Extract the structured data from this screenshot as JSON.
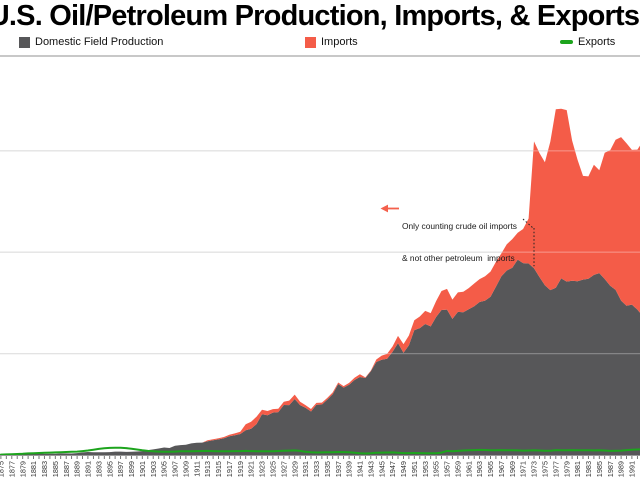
{
  "title": "U.S. Oil/Petroleum Production, Imports, & Exports",
  "legend": {
    "items": [
      {
        "label": "Domestic Field Production",
        "color": "#575759",
        "swatch": "square"
      },
      {
        "label": "Imports",
        "color": "#f45c48",
        "swatch": "square"
      },
      {
        "label": "Exports",
        "color": "#1da41d",
        "swatch": "dash"
      }
    ]
  },
  "annotation": {
    "line1": "Only counting crude oil imports",
    "line2": "& not other petroleum  imports",
    "arrow_color": "#f4604c",
    "pointer_year": 1973
  },
  "chart_data": {
    "type": "area",
    "stacked": true,
    "title": "U.S. Oil/Petroleum Production, Imports, & Exports",
    "xlabel": "",
    "ylabel": "",
    "y_axis_note": "y-axis labels cropped out of view; gridlines estimated at 5000/10000/15000 (thousand-barrel-per-day scale)",
    "grid": "horizontal",
    "legend_position": "top",
    "year_start": 1875,
    "year_end": 1993,
    "ylim": [
      0,
      20000
    ],
    "y_gridlines": [
      5000,
      10000,
      15000
    ],
    "x_tick_label_years": [
      1875,
      1877,
      1879,
      1881,
      1883,
      1885,
      1887,
      1889,
      1891,
      1893,
      1895,
      1897,
      1899,
      1901,
      1903,
      1905,
      1907,
      1909,
      1911,
      1913,
      1915,
      1917,
      1919,
      1921,
      1923,
      1925,
      1927,
      1929,
      1931,
      1933,
      1935,
      1937,
      1939,
      1941,
      1943,
      1945,
      1947,
      1949,
      1951,
      1953,
      1955,
      1957,
      1959,
      1961,
      1963,
      1965,
      1967,
      1969,
      1971,
      1973,
      1975,
      1977,
      1979,
      1981,
      1983,
      1985,
      1987,
      1989,
      1991
    ],
    "series": [
      {
        "name": "Domestic Field Production",
        "color": "#575759",
        "render": "area",
        "values": [
          30,
          33,
          36,
          42,
          54,
          72,
          76,
          83,
          64,
          66,
          60,
          77,
          77,
          76,
          96,
          126,
          149,
          138,
          133,
          135,
          145,
          167,
          166,
          152,
          157,
          174,
          190,
          243,
          275,
          321,
          369,
          347,
          455,
          488,
          501,
          574,
          603,
          609,
          678,
          728,
          770,
          822,
          920,
          976,
          1037,
          1221,
          1294,
          1527,
          2007,
          1960,
          2092,
          2117,
          2467,
          2463,
          2760,
          2460,
          2332,
          2145,
          2481,
          2488,
          2730,
          3001,
          3500,
          3324,
          3466,
          3697,
          3847,
          3795,
          4125,
          4584,
          4695,
          4750,
          5088,
          5520,
          5046,
          5407,
          6158,
          6256,
          6458,
          6342,
          6807,
          7151,
          7170,
          6710,
          7054,
          7035,
          7183,
          7332,
          7542,
          7614,
          7804,
          8295,
          8810,
          9096,
          9238,
          9637,
          9463,
          9441,
          9208,
          8774,
          8375,
          8132,
          8245,
          8707,
          8552,
          8597,
          8572,
          8649,
          8688,
          8879,
          8971,
          8680,
          8349,
          8140,
          7613,
          7355,
          7417,
          7171,
          6847
        ]
      },
      {
        "name": "Imports",
        "color": "#f45c48",
        "render": "area",
        "values": [
          0,
          0,
          0,
          0,
          0,
          0,
          0,
          0,
          0,
          0,
          0,
          0,
          0,
          0,
          0,
          0,
          0,
          0,
          0,
          0,
          0,
          0,
          0,
          0,
          0,
          0,
          0,
          0,
          0,
          0,
          0,
          0,
          0,
          0,
          0,
          0,
          0,
          0,
          45,
          50,
          57,
          64,
          77,
          88,
          108,
          291,
          342,
          365,
          225,
          211,
          170,
          164,
          160,
          218,
          217,
          170,
          130,
          122,
          88,
          97,
          88,
          88,
          75,
          71,
          88,
          113,
          139,
          33,
          37,
          123,
          204,
          236,
          268,
          353,
          421,
          487,
          490,
          575,
          648,
          656,
          782,
          937,
          1022,
          953,
          964,
          1019,
          1047,
          1126,
          1132,
          1198,
          1238,
          1225,
          1129,
          1293,
          1408,
          1324,
          1681,
          2222,
          6256,
          6112,
          6056,
          7313,
          8807,
          8363,
          8456,
          6909,
          5996,
          5113,
          5051,
          5437,
          5067,
          6224,
          6678,
          7402,
          8061,
          8018,
          7627,
          7888,
          8620
        ]
      },
      {
        "name": "Exports",
        "color": "#1da41d",
        "render": "line",
        "values": [
          20,
          30,
          40,
          50,
          60,
          80,
          90,
          100,
          110,
          120,
          130,
          140,
          150,
          160,
          170,
          190,
          220,
          260,
          300,
          330,
          350,
          360,
          355,
          340,
          310,
          270,
          230,
          200,
          180,
          170,
          160,
          160,
          170,
          180,
          180,
          180,
          190,
          195,
          200,
          190,
          185,
          185,
          185,
          190,
          190,
          200,
          190,
          185,
          180,
          180,
          185,
          195,
          205,
          215,
          225,
          200,
          160,
          135,
          125,
          130,
          135,
          140,
          150,
          145,
          135,
          110,
          85,
          75,
          85,
          110,
          120,
          125,
          130,
          110,
          95,
          95,
          100,
          95,
          85,
          85,
          90,
          120,
          200,
          180,
          200,
          220,
          230,
          240,
          250,
          245,
          235,
          230,
          240,
          235,
          230,
          225,
          215,
          220,
          230,
          220,
          205,
          210,
          240,
          235,
          235,
          240,
          235,
          235,
          230,
          225,
          230,
          220,
          200,
          205,
          215,
          240,
          260,
          270,
          280
        ]
      }
    ],
    "annotations": [
      {
        "text": "Only counting crude oil imports & not other petroleum imports",
        "year": 1973,
        "style": "dotted-pointer"
      }
    ]
  }
}
